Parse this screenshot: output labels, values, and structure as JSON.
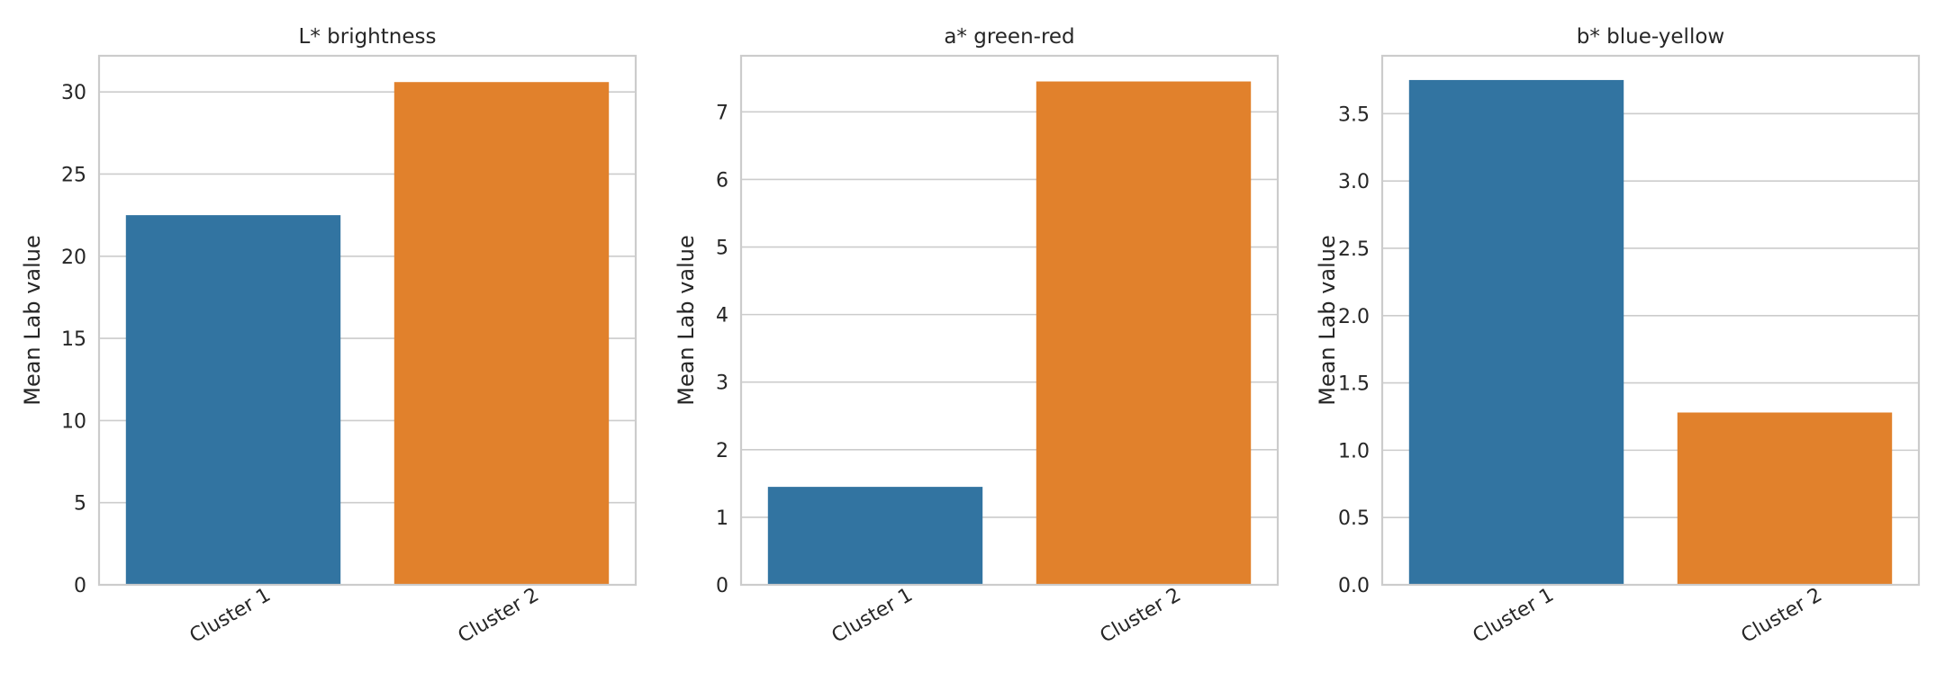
{
  "chart_data": [
    {
      "type": "bar",
      "title": "L* brightness",
      "ylabel": "Mean Lab value",
      "xlabel": "",
      "categories": [
        "Cluster 1",
        "Cluster 2"
      ],
      "values": [
        22.5,
        30.6
      ],
      "colors": [
        "#3274a1",
        "#e1812c"
      ],
      "ylim": [
        0,
        32.2
      ],
      "yticks": [
        0,
        5,
        10,
        15,
        20,
        25,
        30
      ],
      "ytick_labels": [
        "0",
        "5",
        "10",
        "15",
        "20",
        "25",
        "30"
      ],
      "grid": "y"
    },
    {
      "type": "bar",
      "title": "a* green-red",
      "ylabel": "Mean Lab value",
      "xlabel": "",
      "categories": [
        "Cluster 1",
        "Cluster 2"
      ],
      "values": [
        1.45,
        7.45
      ],
      "colors": [
        "#3274a1",
        "#e1812c"
      ],
      "ylim": [
        0,
        7.83
      ],
      "yticks": [
        0,
        1,
        2,
        3,
        4,
        5,
        6,
        7
      ],
      "ytick_labels": [
        "0",
        "1",
        "2",
        "3",
        "4",
        "5",
        "6",
        "7"
      ],
      "grid": "y"
    },
    {
      "type": "bar",
      "title": "b* blue-yellow",
      "ylabel": "Mean Lab value",
      "xlabel": "",
      "categories": [
        "Cluster 1",
        "Cluster 2"
      ],
      "values": [
        3.75,
        1.28
      ],
      "colors": [
        "#3274a1",
        "#e1812c"
      ],
      "ylim": [
        0,
        3.93
      ],
      "yticks": [
        0,
        0.5,
        1,
        1.5,
        2,
        2.5,
        3,
        3.5
      ],
      "ytick_labels": [
        "0.0",
        "0.5",
        "1.0",
        "1.5",
        "2.0",
        "2.5",
        "3.0",
        "3.5"
      ],
      "grid": "y"
    }
  ]
}
